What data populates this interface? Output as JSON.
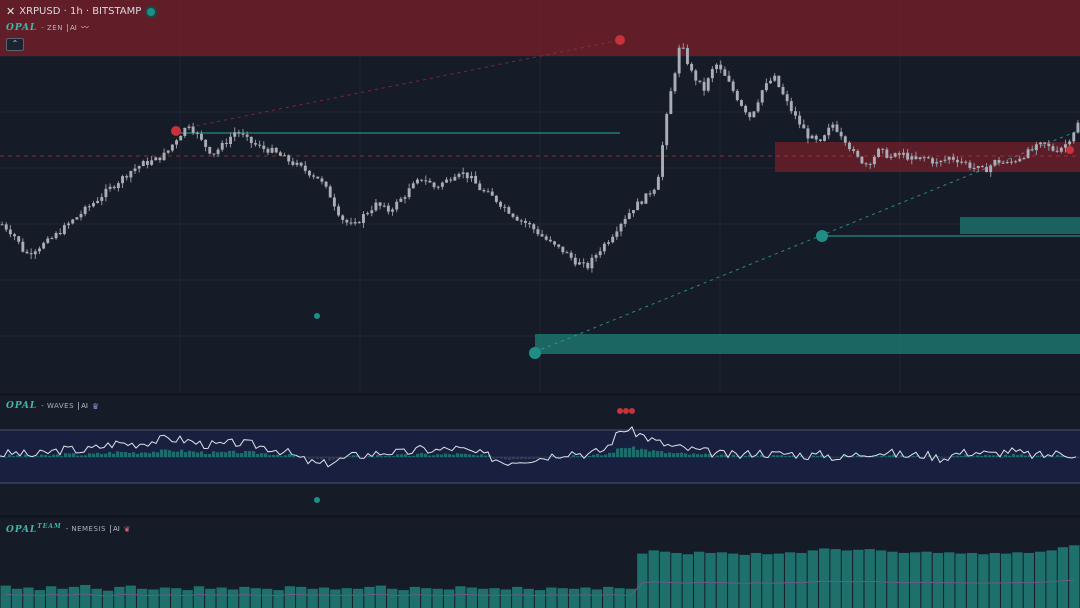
{
  "header": {
    "symbol_line": "XRPUSD · 1h · BITSTAMP",
    "close_icon": "close-icon",
    "status_color": "#1f8f86"
  },
  "indicators": {
    "zen": {
      "logo": "OPAL",
      "name": "- ZEN",
      "tag": "AI",
      "icon": "wave-icon"
    },
    "waves": {
      "logo": "OPAL",
      "name": "- WAVES",
      "tag": "AI",
      "icon": "crown-icon"
    },
    "nemesis": {
      "logo": "OPAL",
      "sup": "TEAM",
      "name": "- NEMESIS",
      "tag": "AI",
      "icon": "brain-icon"
    }
  },
  "colors": {
    "bg": "#161c27",
    "candle": "#a9adb6",
    "supply_zone": "#8a1f2a",
    "demand_zone": "#1d7f78",
    "teal_line": "#2aa79b",
    "red_line": "#b8323c"
  },
  "chart_data": [
    {
      "type": "line",
      "title": "XRPUSD · 1h · BITSTAMP",
      "series": [
        {
          "values": [
            0.42,
            0.39,
            0.33,
            0.35,
            0.37,
            0.4,
            0.43,
            0.46,
            0.49,
            0.52,
            0.55,
            0.58,
            0.6,
            0.61,
            0.63,
            0.68,
            0.72,
            0.67,
            0.63,
            0.66,
            0.7,
            0.67,
            0.65,
            0.64,
            0.62,
            0.6,
            0.58,
            0.56,
            0.51,
            0.44,
            0.41,
            0.45,
            0.48,
            0.46,
            0.49,
            0.53,
            0.56,
            0.53,
            0.55,
            0.58,
            0.56,
            0.52,
            0.5,
            0.47,
            0.44,
            0.42,
            0.39,
            0.36,
            0.34,
            0.31,
            0.29,
            0.34,
            0.38,
            0.43,
            0.47,
            0.5,
            0.54,
            0.78,
            0.96,
            0.87,
            0.82,
            0.9,
            0.85,
            0.79,
            0.74,
            0.82,
            0.86,
            0.79,
            0.73,
            0.68,
            0.66,
            0.72,
            0.68,
            0.62,
            0.6,
            0.64,
            0.62,
            0.63,
            0.61,
            0.62,
            0.6,
            0.62,
            0.61,
            0.59,
            0.58,
            0.61,
            0.6,
            0.62,
            0.64,
            0.66,
            0.64,
            0.66,
            0.72
          ]
        }
      ]
    },
    {
      "type": "line",
      "series": [
        {
          "values": [
            0.1,
            0.15,
            0.05,
            0.2,
            0.3,
            0.25,
            0.4,
            0.55,
            0.5,
            0.6,
            0.72,
            0.65,
            0.5,
            0.45,
            0.55,
            0.48,
            0.35,
            0.2,
            -0.1,
            -0.3,
            -0.15,
            0.05,
            0.1,
            0.2,
            0.15,
            0.3,
            0.25,
            0.35,
            0.2,
            0.05,
            -0.2,
            -0.1,
            -0.05,
            0.1,
            0.2,
            0.1,
            0.3,
            1.1,
            0.9,
            0.6,
            0.4,
            0.3,
            0.2,
            0.1,
            0.05,
            0.2,
            0.1,
            0.15,
            0.05,
            0.1,
            -0.05,
            0.1,
            0.2,
            0.15,
            0.05,
            0.1,
            -0.05,
            0.15,
            0.2,
            0.1,
            0.25,
            0.1,
            0.05,
            0.15,
            0.1
          ]
        }
      ]
    },
    {
      "type": "bar",
      "series": [
        {
          "values": [
            0.35,
            0.3,
            0.32,
            0.28,
            0.34,
            0.3,
            0.33,
            0.36,
            0.3,
            0.27,
            0.33,
            0.35,
            0.3,
            0.29,
            0.32,
            0.31,
            0.28,
            0.34,
            0.3,
            0.32,
            0.29,
            0.33,
            0.31,
            0.3,
            0.28,
            0.34,
            0.33,
            0.3,
            0.32,
            0.29,
            0.31,
            0.3,
            0.33,
            0.35,
            0.3,
            0.28,
            0.33,
            0.31,
            0.3,
            0.29,
            0.34,
            0.32,
            0.3,
            0.31,
            0.29,
            0.33,
            0.3,
            0.28,
            0.32,
            0.31,
            0.3,
            0.32,
            0.29,
            0.33,
            0.31,
            0.3,
            0.85,
            0.9,
            0.88,
            0.86,
            0.84,
            0.88,
            0.86,
            0.87,
            0.85,
            0.83,
            0.86,
            0.84,
            0.85,
            0.87,
            0.86,
            0.9,
            0.93,
            0.92,
            0.9,
            0.91,
            0.92,
            0.9,
            0.88,
            0.86,
            0.87,
            0.88,
            0.86,
            0.87,
            0.85,
            0.86,
            0.84,
            0.86,
            0.85,
            0.87,
            0.86,
            0.88,
            0.9,
            0.95,
            0.98
          ]
        }
      ]
    }
  ]
}
